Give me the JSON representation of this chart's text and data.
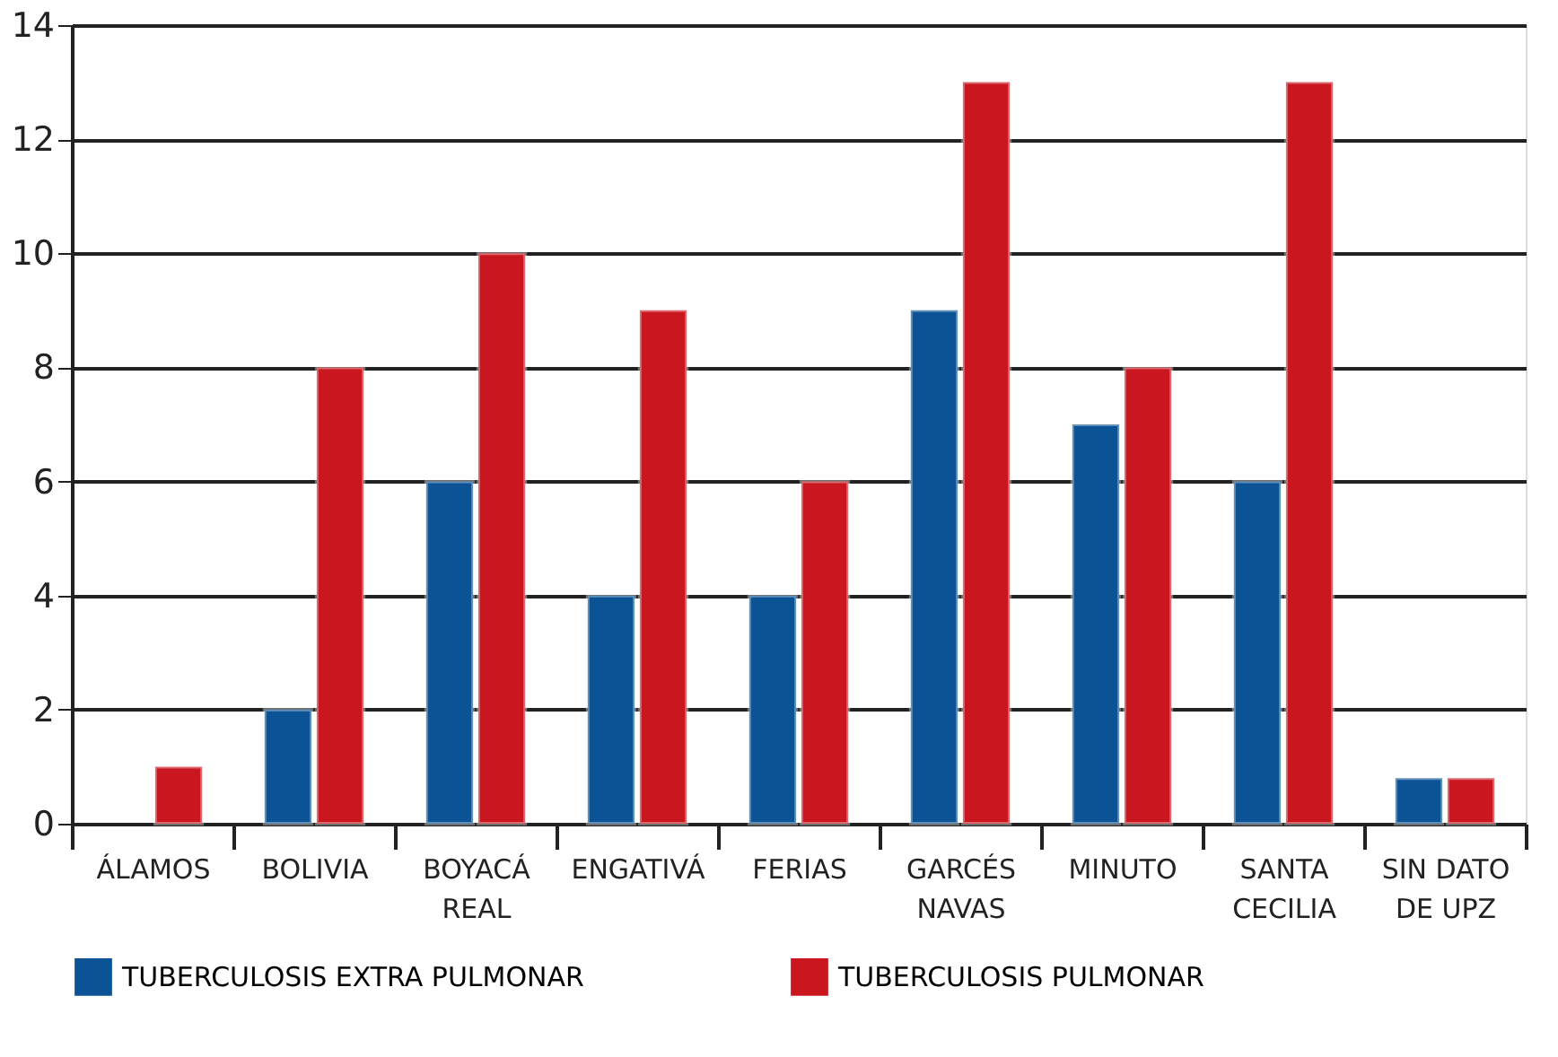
{
  "chart_data": {
    "type": "bar",
    "categories": [
      "ÁLAMOS",
      "BOLIVIA",
      "BOYACÁ\nREAL",
      "ENGATIVÁ",
      "FERIAS",
      "GARCÉS\nNAVAS",
      "MINUTO",
      "SANTA\nCECILIA",
      "SIN DATO\nDE UPZ"
    ],
    "series": [
      {
        "name": "TUBERCULOSIS EXTRA PULMONAR",
        "color": "#0b5394",
        "values": [
          null,
          2,
          6,
          4,
          4,
          9,
          7,
          6,
          0.8
        ]
      },
      {
        "name": "TUBERCULOSIS PULMONAR",
        "color": "#c9161f",
        "values": [
          1,
          8,
          10,
          9,
          6,
          13,
          8,
          13,
          0.8
        ]
      }
    ],
    "ylim": [
      0,
      14
    ],
    "yticks": [
      0,
      2,
      4,
      6,
      8,
      10,
      12,
      14
    ],
    "grid": "y",
    "legend": "bottom"
  }
}
